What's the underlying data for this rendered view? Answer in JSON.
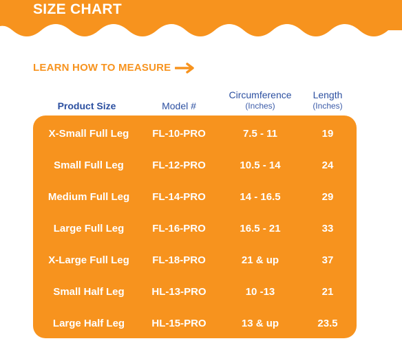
{
  "banner": {
    "title": "SIZE CHART"
  },
  "learn_link": {
    "label": "LEARN HOW TO MEASURE"
  },
  "headers": {
    "product_size": "Product Size",
    "model": "Model #",
    "circumference": "Circumference",
    "circumference_unit": "(Inches)",
    "length": "Length",
    "length_unit": "(Inches)"
  },
  "rows": [
    {
      "size": "X-Small Full Leg",
      "model": "FL-10-PRO",
      "circumference": "7.5 - 11",
      "length": "19"
    },
    {
      "size": "Small Full Leg",
      "model": "FL-12-PRO",
      "circumference": "10.5 - 14",
      "length": "24"
    },
    {
      "size": "Medium Full Leg",
      "model": "FL-14-PRO",
      "circumference": "14 - 16.5",
      "length": "29"
    },
    {
      "size": "Large Full Leg",
      "model": "FL-16-PRO",
      "circumference": "16.5 - 21",
      "length": "33"
    },
    {
      "size": "X-Large Full Leg",
      "model": "FL-18-PRO",
      "circumference": "21 & up",
      "length": "37"
    },
    {
      "size": "Small Half Leg",
      "model": "HL-13-PRO",
      "circumference": "10 -13",
      "length": "21"
    },
    {
      "size": "Large Half Leg",
      "model": "HL-15-PRO",
      "circumference": "13 & up",
      "length": "23.5"
    }
  ],
  "colors": {
    "accent": "#F7931E",
    "heading_blue": "#2B4FA0",
    "text_on_accent": "#ffffff"
  },
  "icons": {
    "learn_arrow": "arrow-right-icon"
  }
}
